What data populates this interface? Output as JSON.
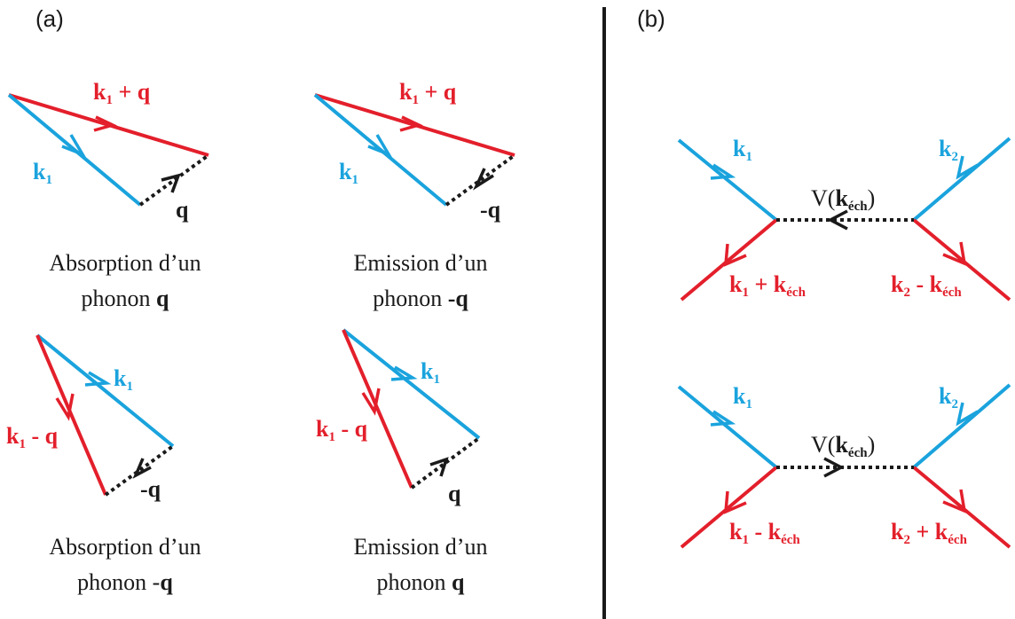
{
  "colors": {
    "red": "#e31f2b",
    "blue": "#1aa3dd",
    "black": "#1a1a1a"
  },
  "panel_a": {
    "label": "(a)",
    "diagrams": [
      {
        "incoming": {
          "k": "k",
          "sub": "1"
        },
        "outgoing": {
          "k": "k",
          "sub": "1",
          "op": " + q"
        },
        "phonon": "q",
        "caption_line1": "Absorption d’un",
        "caption_line2_text": "phonon ",
        "caption_line2_bold": "q"
      },
      {
        "incoming": {
          "k": "k",
          "sub": "1"
        },
        "outgoing": {
          "k": "k",
          "sub": "1",
          "op": " + q"
        },
        "phonon": "-q",
        "caption_line1": "Emission d’un",
        "caption_line2_text": "phonon ",
        "caption_line2_bold": "-q"
      },
      {
        "incoming": {
          "k": "k",
          "sub": "1"
        },
        "outgoing": {
          "k": "k",
          "sub": "1",
          "op": " - q"
        },
        "phonon": "-q",
        "caption_line1": "Absorption d’un",
        "caption_line2_text": "phonon -",
        "caption_line2_bold": "q"
      },
      {
        "incoming": {
          "k": "k",
          "sub": "1"
        },
        "outgoing": {
          "k": "k",
          "sub": "1",
          "op": " - q"
        },
        "phonon": "q",
        "caption_line1": "Emission d’un",
        "caption_line2_text": "phonon ",
        "caption_line2_bold": "q"
      }
    ]
  },
  "panel_b": {
    "label": "(b)",
    "diagrams": [
      {
        "in_left": {
          "k": "k",
          "sub": "1"
        },
        "in_right": {
          "k": "k",
          "sub": "2"
        },
        "potential": {
          "pre": "V(",
          "k": "k",
          "sub": "éch",
          "post": ")"
        },
        "out_left": {
          "k": "k",
          "sub": "1",
          "op": " + ",
          "k2": "k",
          "sub2": "éch"
        },
        "out_right": {
          "k": "k",
          "sub": "2",
          "op": " - ",
          "k2": "k",
          "sub2": "éch"
        }
      },
      {
        "in_left": {
          "k": "k",
          "sub": "1"
        },
        "in_right": {
          "k": "k",
          "sub": "2"
        },
        "potential": {
          "pre": "V(",
          "k": "k",
          "sub": "éch",
          "post": ")"
        },
        "out_left": {
          "k": "k",
          "sub": "1",
          "op": " - ",
          "k2": "k",
          "sub2": "éch"
        },
        "out_right": {
          "k": "k",
          "sub": "2",
          "op": " + ",
          "k2": "k",
          "sub2": "éch"
        }
      }
    ]
  }
}
